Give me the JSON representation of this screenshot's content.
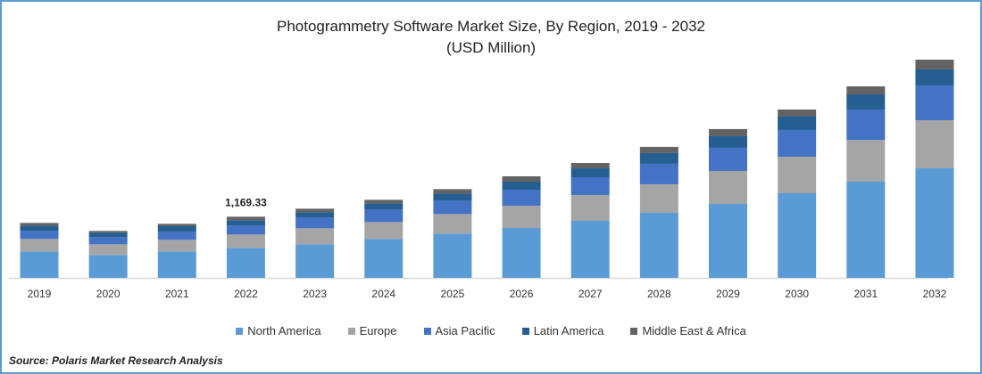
{
  "chart_data": {
    "type": "bar",
    "stacked": true,
    "title": "Photogrammetry Software Market Size, By Region, 2019 - 2032",
    "subtitle": "(USD Million)",
    "categories": [
      "2019",
      "2020",
      "2021",
      "2022",
      "2023",
      "2024",
      "2025",
      "2026",
      "2027",
      "2028",
      "2029",
      "2030",
      "2031",
      "2032"
    ],
    "series": [
      {
        "name": "North America",
        "color": "#5b9bd5",
        "values": [
          505,
          437,
          505,
          573,
          641,
          743,
          845,
          953,
          1089,
          1243,
          1413,
          1617,
          1838,
          2094
        ]
      },
      {
        "name": "Europe",
        "color": "#a5a5a5",
        "values": [
          238,
          204,
          221,
          255,
          306,
          323,
          374,
          426,
          494,
          545,
          630,
          698,
          800,
          919
        ]
      },
      {
        "name": "Asia Pacific",
        "color": "#4472c4",
        "values": [
          153,
          136,
          153,
          170,
          204,
          238,
          255,
          306,
          340,
          392,
          443,
          511,
          579,
          664
        ]
      },
      {
        "name": "Latin America",
        "color": "#255e91",
        "values": [
          102,
          85,
          108,
          102,
          102,
          119,
          136,
          153,
          170,
          204,
          221,
          255,
          289,
          306
        ]
      },
      {
        "name": "Middle East & Africa",
        "color": "#636363",
        "values": [
          51,
          34,
          45,
          68,
          68,
          68,
          85,
          102,
          102,
          119,
          136,
          136,
          153,
          187
        ]
      }
    ],
    "annotations": [
      {
        "category": "2022",
        "text": "1,169.33"
      }
    ],
    "ylim": [
      0,
      4300
    ],
    "grid": false,
    "legend": "bottom"
  },
  "source": "Source: Polaris  Market Research Analysis"
}
